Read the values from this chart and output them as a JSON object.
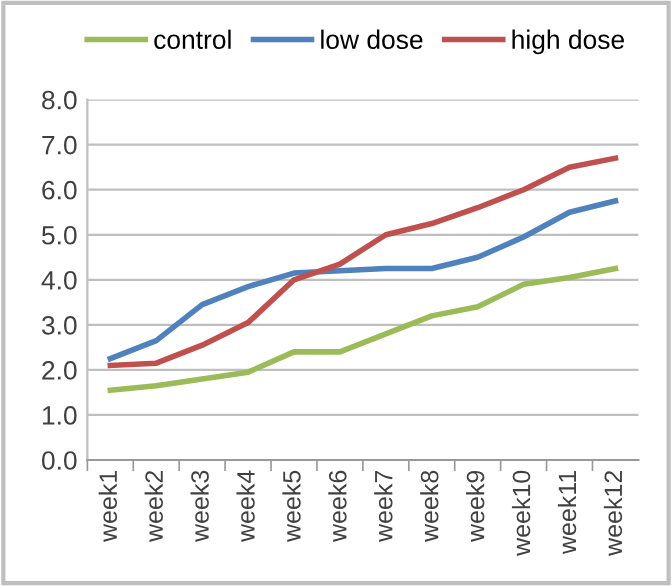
{
  "chart_data": {
    "type": "line",
    "categories": [
      "week1",
      "week2",
      "week3",
      "week4",
      "week5",
      "week6",
      "week7",
      "week8",
      "week9",
      "week10",
      "week11",
      "week12"
    ],
    "series": [
      {
        "name": "control",
        "color": "#9bbb59",
        "values": [
          1.55,
          1.65,
          1.8,
          1.95,
          2.4,
          2.4,
          2.8,
          3.2,
          3.4,
          3.9,
          4.05,
          4.25
        ]
      },
      {
        "name": "low dose",
        "color": "#4f81bd",
        "values": [
          2.25,
          2.65,
          3.45,
          3.85,
          4.15,
          4.2,
          4.25,
          4.25,
          4.5,
          4.95,
          5.5,
          5.75
        ]
      },
      {
        "name": "high dose",
        "color": "#c0504d",
        "values": [
          2.1,
          2.15,
          2.55,
          3.05,
          4.0,
          4.35,
          5.0,
          5.25,
          5.6,
          6.0,
          6.5,
          6.7
        ]
      }
    ],
    "ylim": [
      0,
      8
    ],
    "yticks": [
      {
        "value": 0,
        "label": "0.0"
      },
      {
        "value": 1,
        "label": "1.0"
      },
      {
        "value": 2,
        "label": "2.0"
      },
      {
        "value": 3,
        "label": "3.0"
      },
      {
        "value": 4,
        "label": "4.0"
      },
      {
        "value": 5,
        "label": "5.0"
      },
      {
        "value": 6,
        "label": "6.0"
      },
      {
        "value": 7,
        "label": "7.0"
      },
      {
        "value": 8,
        "label": "8.0"
      }
    ],
    "grid": "y",
    "legend": "top",
    "marker": "none",
    "line_style": "solid"
  }
}
